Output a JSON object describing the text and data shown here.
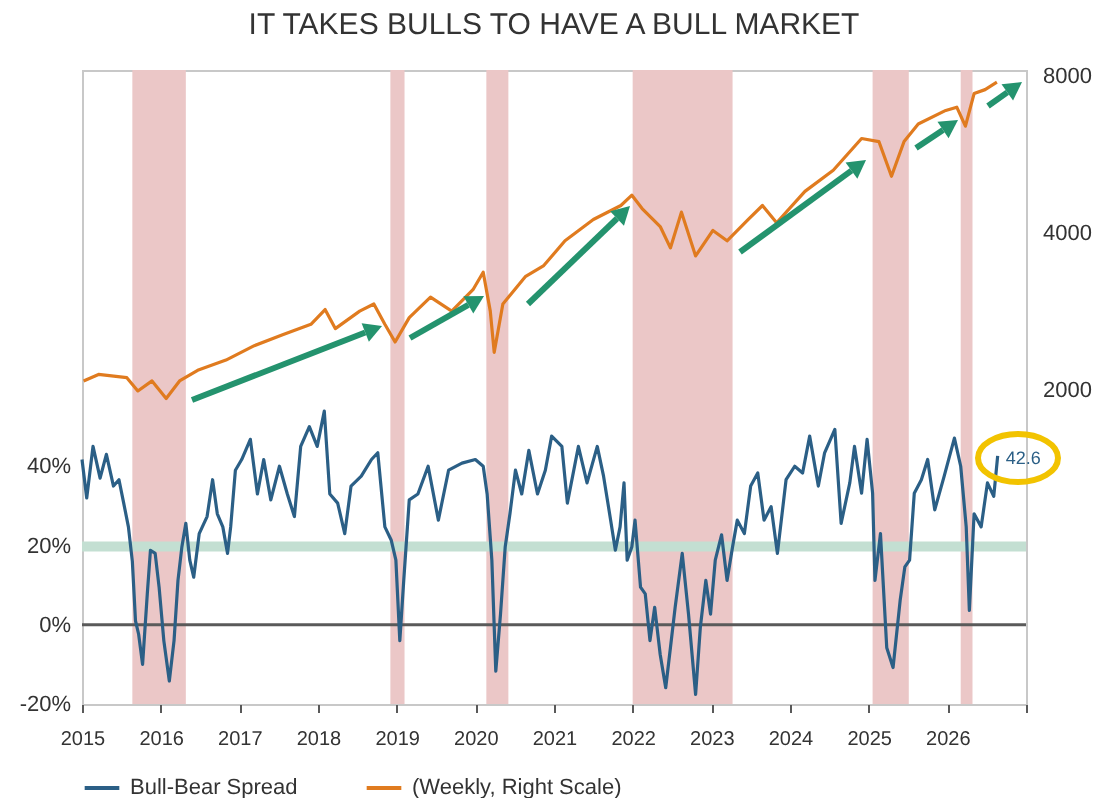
{
  "chart_data": {
    "type": "line",
    "title": "IT TAKES BULLS TO HAVE A BULL MARKET",
    "series": [
      {
        "name": "Bull-Bear Spread",
        "color": "#2b5f86",
        "x": [
          2015.0,
          2015.06,
          2015.14,
          2015.23,
          2015.31,
          2015.4,
          2015.47,
          2015.53,
          2015.59,
          2015.64,
          2015.68,
          2015.72,
          2015.77,
          2015.83,
          2015.87,
          2015.93,
          2015.98,
          2016.04,
          2016.11,
          2016.17,
          2016.22,
          2016.27,
          2016.32,
          2016.37,
          2016.42,
          2016.49,
          2016.59,
          2016.66,
          2016.72,
          2016.79,
          2016.85,
          2016.89,
          2016.95,
          2017.03,
          2017.14,
          2017.23,
          2017.31,
          2017.4,
          2017.51,
          2017.61,
          2017.7,
          2017.78,
          2017.89,
          2017.99,
          2018.08,
          2018.15,
          2018.25,
          2018.34,
          2018.42,
          2018.55,
          2018.68,
          2018.76,
          2018.85,
          2018.93,
          2018.99,
          2019.04,
          2019.09,
          2019.16,
          2019.27,
          2019.4,
          2019.53,
          2019.66,
          2019.83,
          2020.0,
          2020.1,
          2020.15,
          2020.21,
          2020.26,
          2020.32,
          2020.38,
          2020.44,
          2020.51,
          2020.59,
          2020.68,
          2020.79,
          2020.89,
          2020.97,
          2021.1,
          2021.17,
          2021.31,
          2021.42,
          2021.55,
          2021.63,
          2021.72,
          2021.78,
          2021.84,
          2021.89,
          2021.93,
          2021.99,
          2022.03,
          2022.1,
          2022.16,
          2022.22,
          2022.28,
          2022.35,
          2022.42,
          2022.48,
          2022.54,
          2022.63,
          2022.71,
          2022.8,
          2022.86,
          2022.93,
          2022.99,
          2023.05,
          2023.13,
          2023.2,
          2023.27,
          2023.33,
          2023.42,
          2023.5,
          2023.59,
          2023.67,
          2023.76,
          2023.84,
          2023.95,
          2024.06,
          2024.16,
          2024.25,
          2024.36,
          2024.44,
          2024.57,
          2024.65,
          2024.76,
          2024.82,
          2024.91,
          2024.98,
          2025.05,
          2025.08,
          2025.15,
          2025.23,
          2025.31,
          2025.4,
          2025.46,
          2025.52,
          2025.58,
          2025.67,
          2025.75,
          2025.84,
          2025.96,
          2026.09,
          2026.17,
          2026.24,
          2026.28,
          2026.34,
          2026.43,
          2026.51,
          2026.59,
          2026.64
        ],
        "values": [
          41.7,
          32,
          45,
          37,
          43,
          35,
          36.6,
          30.7,
          24.7,
          16,
          1,
          -2.4,
          -10,
          7.8,
          18.8,
          18,
          9.5,
          -4,
          -14.2,
          -4,
          11.2,
          19.7,
          25.6,
          16.3,
          12,
          23,
          27.3,
          36.6,
          28,
          24.7,
          18,
          24.7,
          39,
          41.7,
          46.8,
          33,
          41.7,
          31.5,
          40,
          33,
          27.3,
          45,
          50,
          45,
          53.9,
          33,
          30.7,
          23,
          35,
          37.5,
          41.7,
          43.4,
          24.7,
          21.4,
          16.3,
          -4,
          11.2,
          31.5,
          33,
          40,
          26.4,
          39,
          40.8,
          41.7,
          40,
          33,
          16.3,
          -11.7,
          2.7,
          19.7,
          28,
          39,
          33,
          44,
          33,
          39,
          47.6,
          45,
          30.7,
          45,
          35.8,
          45,
          37.5,
          26.4,
          18.8,
          24.7,
          35.8,
          16.3,
          19.7,
          26.4,
          9.5,
          7.8,
          -4,
          4.4,
          -7.5,
          -15.9,
          -5.8,
          4.4,
          18,
          2.7,
          -17.6,
          -0.7,
          11.2,
          2.7,
          16.3,
          22.7,
          11.2,
          19.7,
          26.4,
          23,
          35,
          38.3,
          26.4,
          29.8,
          18,
          36.6,
          40,
          38.3,
          47.6,
          35,
          43.4,
          49.3,
          25.6,
          35.8,
          45,
          33.2,
          46.8,
          33.2,
          11.2,
          23,
          -5.8,
          -10.8,
          6.1,
          14.6,
          16.3,
          33.2,
          36.6,
          41.7,
          29,
          37.5,
          47.1,
          40,
          24.7,
          3.6,
          28,
          24.7,
          35.8,
          32.4,
          42.6
        ]
      },
      {
        "name": "(Weekly, Right Scale)",
        "color": "#e07b1f",
        "axis": "y2",
        "x": [
          2015.02,
          2015.21,
          2015.57,
          2015.71,
          2015.89,
          2016.07,
          2016.24,
          2016.47,
          2016.83,
          2017.19,
          2017.55,
          2017.91,
          2018.09,
          2018.22,
          2018.53,
          2018.71,
          2018.85,
          2018.98,
          2019.16,
          2019.43,
          2019.7,
          2019.97,
          2020.1,
          2020.19,
          2020.24,
          2020.35,
          2020.46,
          2020.64,
          2020.87,
          2021.14,
          2021.5,
          2021.85,
          2021.99,
          2022.12,
          2022.35,
          2022.48,
          2022.62,
          2022.8,
          2023.02,
          2023.2,
          2023.47,
          2023.65,
          2023.83,
          2024.19,
          2024.55,
          2024.91,
          2025.13,
          2025.29,
          2025.45,
          2025.63,
          2025.98,
          2026.12,
          2026.23,
          2026.34,
          2026.48,
          2026.63
        ],
        "values": [
          2080,
          2140,
          2110,
          1990,
          2080,
          1925,
          2080,
          2180,
          2280,
          2430,
          2550,
          2670,
          2850,
          2620,
          2830,
          2920,
          2670,
          2470,
          2750,
          3010,
          2830,
          3110,
          3360,
          2830,
          2360,
          2920,
          3060,
          3300,
          3460,
          3860,
          4240,
          4510,
          4720,
          4450,
          4110,
          3740,
          4380,
          3610,
          4040,
          3860,
          4240,
          4510,
          4180,
          4800,
          5270,
          6060,
          5980,
          5130,
          5980,
          6460,
          6860,
          6960,
          6400,
          7390,
          7520,
          7770
        ]
      }
    ],
    "xlim": [
      2015,
      2027
    ],
    "xticks": [
      2015,
      2016,
      2017,
      2018,
      2019,
      2020,
      2021,
      2022,
      2023,
      2024,
      2025,
      2026,
      {
        "value": 2027,
        "label": null
      }
    ],
    "ylim": [
      -20,
      140
    ],
    "yticks": [
      {
        "value": -20,
        "label": "-20%"
      },
      {
        "value": 0,
        "label": "0%"
      },
      {
        "value": 20,
        "label": "20%"
      },
      {
        "value": 40,
        "label": "40%"
      }
    ],
    "y2lim": [
      500,
      8200
    ],
    "y2ticks": [
      2000,
      4000,
      8000
    ],
    "log": "y2",
    "legend": "bottom",
    "bands": [
      {
        "axis": "x",
        "from": 2015.64,
        "to": 2016.32,
        "color": "#ebc7c7"
      },
      {
        "axis": "x",
        "from": 2018.92,
        "to": 2019.1,
        "color": "#ebc7c7"
      },
      {
        "axis": "x",
        "from": 2020.14,
        "to": 2020.42,
        "color": "#ebc7c7"
      },
      {
        "axis": "x",
        "from": 2022.0,
        "to": 2023.27,
        "color": "#ebc7c7"
      },
      {
        "axis": "x",
        "from": 2025.05,
        "to": 2025.51,
        "color": "#ebc7c7"
      },
      {
        "axis": "x",
        "from": 2026.17,
        "to": 2026.32,
        "color": "#ebc7c7"
      },
      {
        "axis": "y",
        "from": 18.5,
        "to": 21,
        "color": "#c3dfd2"
      }
    ],
    "ref_lines": [
      {
        "axis": "y",
        "value": 0,
        "color": "#5a5a5a"
      }
    ],
    "annotations": [
      {
        "text": "42.6",
        "x": 2026.64,
        "y": 42.6
      }
    ]
  }
}
